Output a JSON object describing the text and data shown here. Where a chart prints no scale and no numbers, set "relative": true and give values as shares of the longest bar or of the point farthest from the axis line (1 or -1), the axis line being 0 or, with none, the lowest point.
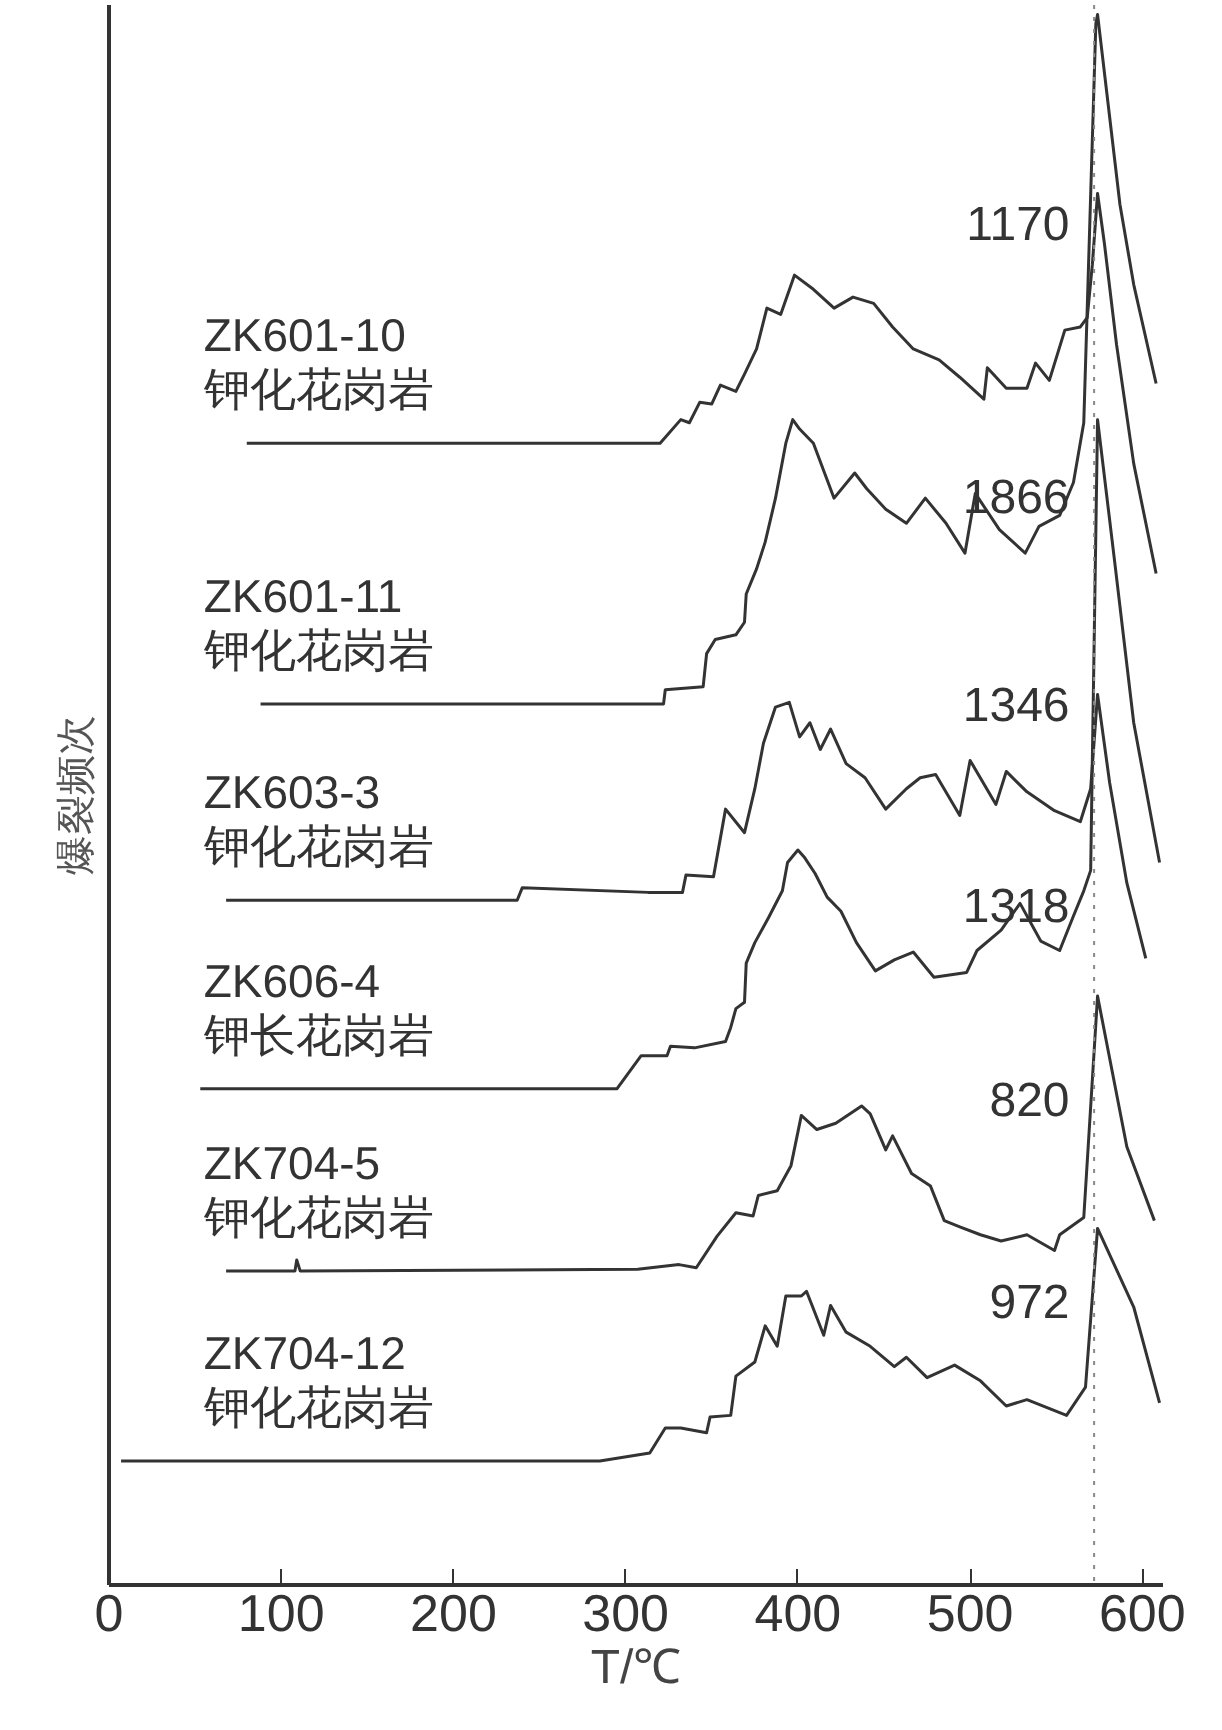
{
  "chart_data": {
    "type": "line",
    "relative": true,
    "xlabel": "T/℃",
    "ylabel": "爆裂频次",
    "xlim": [
      0,
      612
    ],
    "xticks": [
      0,
      100,
      200,
      300,
      400,
      500,
      600
    ],
    "grid": false,
    "marker": "none",
    "line_style": "solid",
    "series": [
      {
        "name": "ZK601-10\n钾化花岗岩",
        "color": "#333333",
        "x": [
          80,
          320,
          332,
          337,
          343,
          350,
          355,
          364,
          369,
          376,
          382,
          390,
          398,
          409,
          421,
          432,
          444,
          455,
          467,
          482,
          494,
          508,
          510,
          521,
          533,
          538,
          546,
          555,
          564,
          568,
          571,
          574,
          578,
          585,
          595,
          608
        ],
        "values": [
          0.727,
          0.727,
          0.742,
          0.74,
          0.753,
          0.752,
          0.764,
          0.76,
          0.771,
          0.787,
          0.813,
          0.809,
          0.834,
          0.825,
          0.813,
          0.82,
          0.816,
          0.801,
          0.787,
          0.78,
          0.769,
          0.755,
          0.775,
          0.762,
          0.762,
          0.778,
          0.767,
          0.799,
          0.801,
          0.807,
          0.841,
          0.886,
          0.854,
          0.79,
          0.714,
          0.644
        ]
      },
      {
        "name": "ZK601-11\n钾化花岗岩",
        "color": "#333333",
        "x": [
          88,
          322,
          323,
          345,
          347,
          352,
          364,
          369,
          370,
          376,
          381,
          387,
          393,
          397,
          401,
          409,
          421,
          433,
          440,
          451,
          463,
          474,
          486,
          497,
          503,
          517,
          532,
          540,
          552,
          560,
          566,
          573,
          574,
          587,
          595,
          608
        ],
        "values": [
          0.561,
          0.561,
          0.57,
          0.572,
          0.593,
          0.602,
          0.605,
          0.613,
          0.631,
          0.647,
          0.664,
          0.692,
          0.727,
          0.742,
          0.736,
          0.727,
          0.692,
          0.708,
          0.698,
          0.685,
          0.676,
          0.692,
          0.676,
          0.657,
          0.695,
          0.672,
          0.657,
          0.674,
          0.681,
          0.702,
          0.74,
          0.994,
          1.0,
          0.879,
          0.828,
          0.765
        ]
      },
      {
        "name": "ZK603-3\n钾化花岗岩",
        "color": "#333333",
        "x": [
          68,
          237,
          240,
          313,
          333,
          335,
          351,
          358,
          369,
          375,
          380,
          387,
          395,
          401,
          407,
          413,
          419,
          428,
          439,
          451,
          463,
          471,
          480,
          494,
          500,
          515,
          521,
          533,
          549,
          564,
          570,
          574,
          581,
          591,
          602
        ],
        "values": [
          0.436,
          0.436,
          0.444,
          0.441,
          0.441,
          0.452,
          0.451,
          0.494,
          0.479,
          0.507,
          0.536,
          0.559,
          0.562,
          0.54,
          0.549,
          0.532,
          0.545,
          0.523,
          0.514,
          0.494,
          0.507,
          0.514,
          0.516,
          0.49,
          0.525,
          0.497,
          0.518,
          0.505,
          0.493,
          0.486,
          0.507,
          0.567,
          0.511,
          0.447,
          0.399
        ]
      },
      {
        "name": "ZK606-4\n钾长花岗岩",
        "color": "#333333",
        "x": [
          53,
          295,
          309,
          324,
          326,
          340,
          358,
          361,
          364,
          369,
          370,
          375,
          383,
          391,
          394,
          400,
          404,
          410,
          417,
          425,
          434,
          445,
          456,
          467,
          479,
          498,
          504,
          518,
          529,
          541,
          552,
          560,
          566,
          570,
          574,
          584,
          595,
          610
        ],
        "values": [
          0.316,
          0.316,
          0.337,
          0.337,
          0.343,
          0.342,
          0.346,
          0.355,
          0.367,
          0.371,
          0.396,
          0.409,
          0.425,
          0.442,
          0.46,
          0.468,
          0.463,
          0.453,
          0.438,
          0.429,
          0.409,
          0.391,
          0.398,
          0.403,
          0.387,
          0.39,
          0.404,
          0.417,
          0.434,
          0.41,
          0.404,
          0.426,
          0.442,
          0.455,
          0.742,
          0.651,
          0.549,
          0.46
        ]
      },
      {
        "name": "ZK704-5\n钾化花岗岩",
        "color": "#333333",
        "x": [
          68,
          108,
          109,
          111,
          307,
          331,
          341,
          353,
          364,
          374,
          377,
          388,
          396,
          402,
          411,
          422,
          437,
          442,
          451,
          455,
          466,
          477,
          485,
          494,
          506,
          518,
          533,
          549,
          552,
          566,
          574,
          591,
          607
        ],
        "values": [
          0.2,
          0.2,
          0.207,
          0.2,
          0.201,
          0.204,
          0.202,
          0.222,
          0.237,
          0.235,
          0.248,
          0.251,
          0.267,
          0.299,
          0.29,
          0.294,
          0.305,
          0.3,
          0.277,
          0.286,
          0.262,
          0.254,
          0.232,
          0.228,
          0.223,
          0.219,
          0.223,
          0.213,
          0.223,
          0.234,
          0.375,
          0.279,
          0.232
        ]
      },
      {
        "name": "ZK704-12\n钾化花岗岩",
        "color": "#333333",
        "x": [
          7,
          285,
          314,
          323,
          332,
          347,
          349,
          361,
          364,
          375,
          381,
          388,
          393,
          402,
          405,
          415,
          419,
          428,
          442,
          456,
          463,
          475,
          491,
          506,
          521,
          533,
          556,
          567,
          574,
          595,
          610
        ],
        "values": [
          0.079,
          0.079,
          0.084,
          0.1,
          0.1,
          0.097,
          0.107,
          0.108,
          0.133,
          0.142,
          0.165,
          0.152,
          0.184,
          0.184,
          0.187,
          0.159,
          0.178,
          0.161,
          0.152,
          0.139,
          0.145,
          0.132,
          0.14,
          0.13,
          0.114,
          0.118,
          0.108,
          0.126,
          0.227,
          0.177,
          0.116
        ]
      }
    ],
    "ref_lines": [
      {
        "axis": "x",
        "value": 572,
        "color": "#888888",
        "line_style": "dotted"
      }
    ],
    "annotations": [
      "1170",
      "1866",
      "1346",
      "1318",
      "820",
      "972"
    ]
  }
}
